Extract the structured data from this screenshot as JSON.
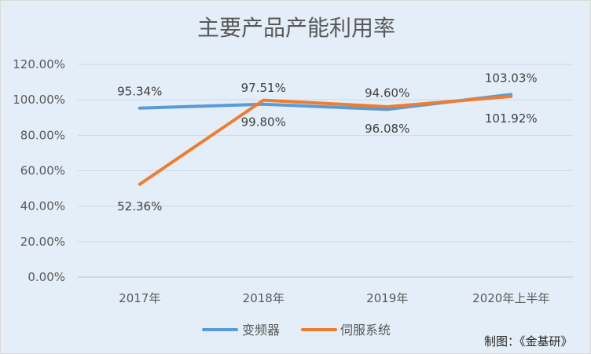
{
  "chart_data": {
    "type": "line",
    "title": "主要产品产能利用率",
    "categories": [
      "2017年",
      "2018年",
      "2019年",
      "2020年上半年"
    ],
    "yticks": [
      "0.00%",
      "20.00%",
      "40.00%",
      "60.00%",
      "80.00%",
      "100.00%",
      "120.00%"
    ],
    "ylim": [
      0,
      120
    ],
    "grid": true,
    "legend_position": "bottom",
    "series": [
      {
        "name": "变频器",
        "color": "#5b9bd5",
        "values": [
          95.34,
          97.51,
          94.6,
          103.03
        ],
        "labels": [
          "95.34%",
          "97.51%",
          "94.60%",
          "103.03%"
        ]
      },
      {
        "name": "伺服系统",
        "color": "#ed7d31",
        "values": [
          52.36,
          99.8,
          96.08,
          101.92
        ],
        "labels": [
          "52.36%",
          "99.80%",
          "96.08%",
          "101.92%"
        ]
      }
    ]
  },
  "credit": "制图：《金基研》"
}
